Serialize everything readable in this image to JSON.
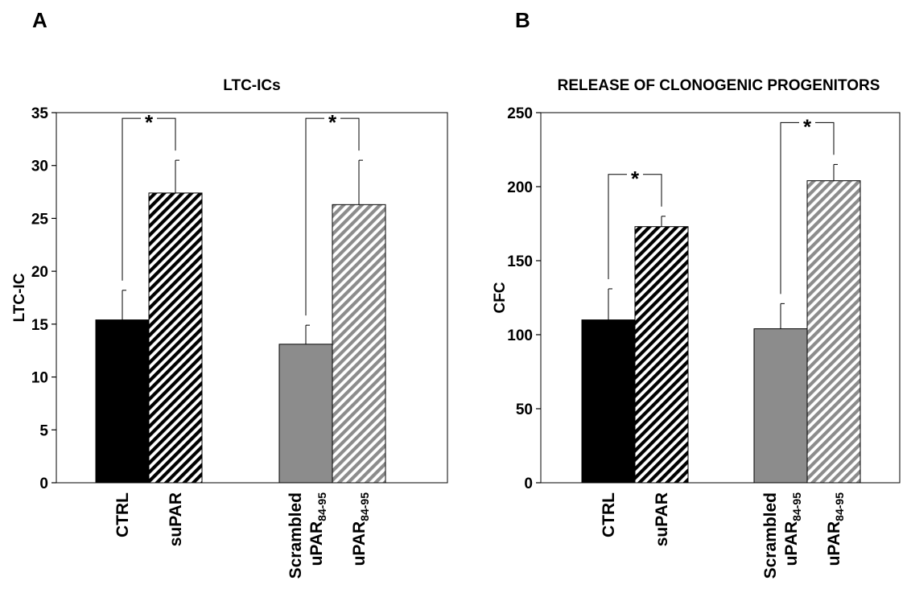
{
  "chart_data": [
    {
      "panel_label": "A",
      "type": "bar",
      "title": "LTC-ICs",
      "ylabel": "LTC-IC",
      "ylim": [
        0,
        35
      ],
      "yticks": [
        0,
        5,
        10,
        15,
        20,
        25,
        30,
        35
      ],
      "categories": [
        {
          "label": "CTRL",
          "sub": ""
        },
        {
          "label": "suPAR",
          "sub": ""
        },
        {
          "label": "Scrambled",
          "label2": "uPAR",
          "sub": "84-95"
        },
        {
          "label": "uPAR",
          "sub": "84-95"
        }
      ],
      "values": [
        15.4,
        27.4,
        13.1,
        26.3
      ],
      "errors": [
        2.8,
        3.1,
        1.8,
        4.2
      ],
      "fills": [
        "solid-black",
        "hatch-black",
        "solid-gray",
        "hatch-gray"
      ],
      "colors": {
        "black": "#000000",
        "gray": "#8c8c8c"
      },
      "significance": [
        {
          "from": 0,
          "to": 1,
          "label": "*"
        },
        {
          "from": 2,
          "to": 3,
          "label": "*"
        }
      ]
    },
    {
      "panel_label": "B",
      "type": "bar",
      "title": "RELEASE OF CLONOGENIC PROGENITORS",
      "ylabel": "CFC",
      "ylim": [
        0,
        250
      ],
      "yticks": [
        0,
        50,
        100,
        150,
        200,
        250
      ],
      "categories": [
        {
          "label": "CTRL",
          "sub": ""
        },
        {
          "label": "suPAR",
          "sub": ""
        },
        {
          "label": "Scrambled",
          "label2": "uPAR",
          "sub": "84-95"
        },
        {
          "label": "uPAR",
          "sub": "84-95"
        }
      ],
      "values": [
        110,
        173,
        104,
        204
      ],
      "errors": [
        21,
        7,
        17,
        11
      ],
      "fills": [
        "solid-black",
        "hatch-black",
        "solid-gray",
        "hatch-gray"
      ],
      "colors": {
        "black": "#000000",
        "gray": "#8c8c8c"
      },
      "significance": [
        {
          "from": 0,
          "to": 1,
          "label": "*"
        },
        {
          "from": 2,
          "to": 3,
          "label": "*"
        }
      ]
    }
  ]
}
